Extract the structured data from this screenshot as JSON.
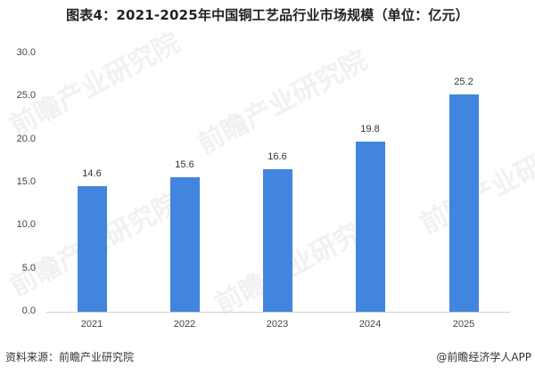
{
  "title": "图表4：2021-2025年中国铜工艺品行业市场规模（单位：亿元）",
  "source": "资料来源：前瞻产业研究院",
  "credit": "@前瞻经济学人APP",
  "watermark": "前瞻产业研究院",
  "colors": {
    "bar": "#4285de",
    "axis": "#d0d0d0"
  },
  "chart_data": {
    "type": "bar",
    "title": "图表4：2021-2025年中国铜工艺品行业市场规模（单位：亿元）",
    "xlabel": "",
    "ylabel": "",
    "unit": "亿元",
    "categories": [
      "2021",
      "2022",
      "2023",
      "2024",
      "2025"
    ],
    "values": [
      14.6,
      15.6,
      16.6,
      19.8,
      25.2
    ],
    "data_labels": [
      "14.6",
      "15.6",
      "16.6",
      "19.8",
      "25.2"
    ],
    "ylim": [
      0,
      30
    ],
    "yticks": [
      "0.0",
      "5.0",
      "10.0",
      "15.0",
      "20.0",
      "25.0",
      "30.0"
    ],
    "grid": false,
    "legend": null
  }
}
